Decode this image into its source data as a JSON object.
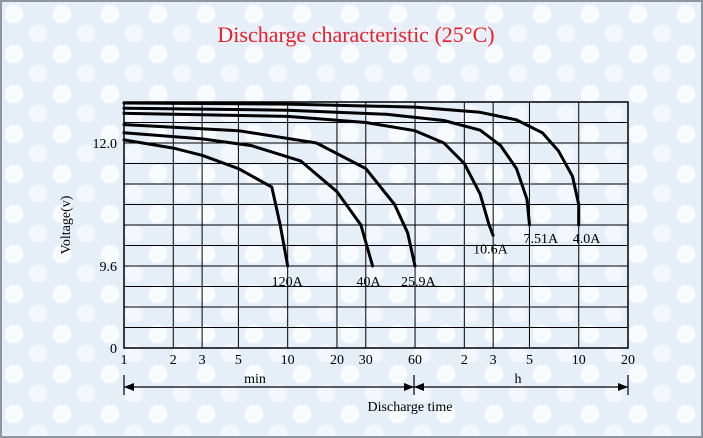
{
  "chart_data": {
    "type": "line",
    "title": "Discharge characteristic (25°C)",
    "title_color": "#e8202a",
    "ylabel": "Voltage(v)",
    "xlabel": "Discharge time",
    "x_scale": "log",
    "x_unit_labels": {
      "min": "min",
      "h": "h"
    },
    "x_ticks_min": [
      "1",
      "2",
      "3",
      "5",
      "10",
      "20",
      "30",
      "60"
    ],
    "x_ticks_h": [
      "2",
      "3",
      "5",
      "10",
      "20"
    ],
    "y_ticks": [
      "0",
      "9.6",
      "12.0"
    ],
    "grid": true,
    "series": [
      {
        "name": "120A",
        "points": [
          [
            1,
            12.06
          ],
          [
            2,
            11.9
          ],
          [
            3,
            11.76
          ],
          [
            5,
            11.5
          ],
          [
            8,
            11.14
          ],
          [
            9,
            10.4
          ],
          [
            10,
            9.6
          ]
        ]
      },
      {
        "name": "40A",
        "points": [
          [
            1,
            12.2
          ],
          [
            3,
            12.08
          ],
          [
            6,
            11.95
          ],
          [
            12,
            11.65
          ],
          [
            20,
            11.05
          ],
          [
            28,
            10.4
          ],
          [
            33,
            9.6
          ]
        ]
      },
      {
        "name": "25.9A",
        "points": [
          [
            1,
            12.36
          ],
          [
            5,
            12.24
          ],
          [
            15,
            12.0
          ],
          [
            30,
            11.5
          ],
          [
            45,
            10.8
          ],
          [
            54,
            10.25
          ],
          [
            60,
            9.6
          ]
        ]
      },
      {
        "name": "10.6A",
        "points": [
          [
            1,
            12.58
          ],
          [
            10,
            12.52
          ],
          [
            30,
            12.4
          ],
          [
            60,
            12.24
          ],
          [
            90,
            12.0
          ],
          [
            120,
            11.6
          ],
          [
            150,
            11.0
          ],
          [
            170,
            10.4
          ],
          [
            180,
            10.2
          ]
        ]
      },
      {
        "name": "7.51A",
        "points": [
          [
            1,
            12.68
          ],
          [
            10,
            12.64
          ],
          [
            40,
            12.56
          ],
          [
            90,
            12.44
          ],
          [
            150,
            12.25
          ],
          [
            200,
            11.95
          ],
          [
            250,
            11.5
          ],
          [
            290,
            10.9
          ],
          [
            300,
            10.4
          ]
        ]
      },
      {
        "name": "4.0A",
        "points": [
          [
            1,
            12.78
          ],
          [
            10,
            12.76
          ],
          [
            60,
            12.7
          ],
          [
            150,
            12.6
          ],
          [
            250,
            12.45
          ],
          [
            360,
            12.2
          ],
          [
            450,
            11.85
          ],
          [
            550,
            11.35
          ],
          [
            600,
            10.8
          ],
          [
            600,
            10.4
          ]
        ]
      }
    ]
  }
}
